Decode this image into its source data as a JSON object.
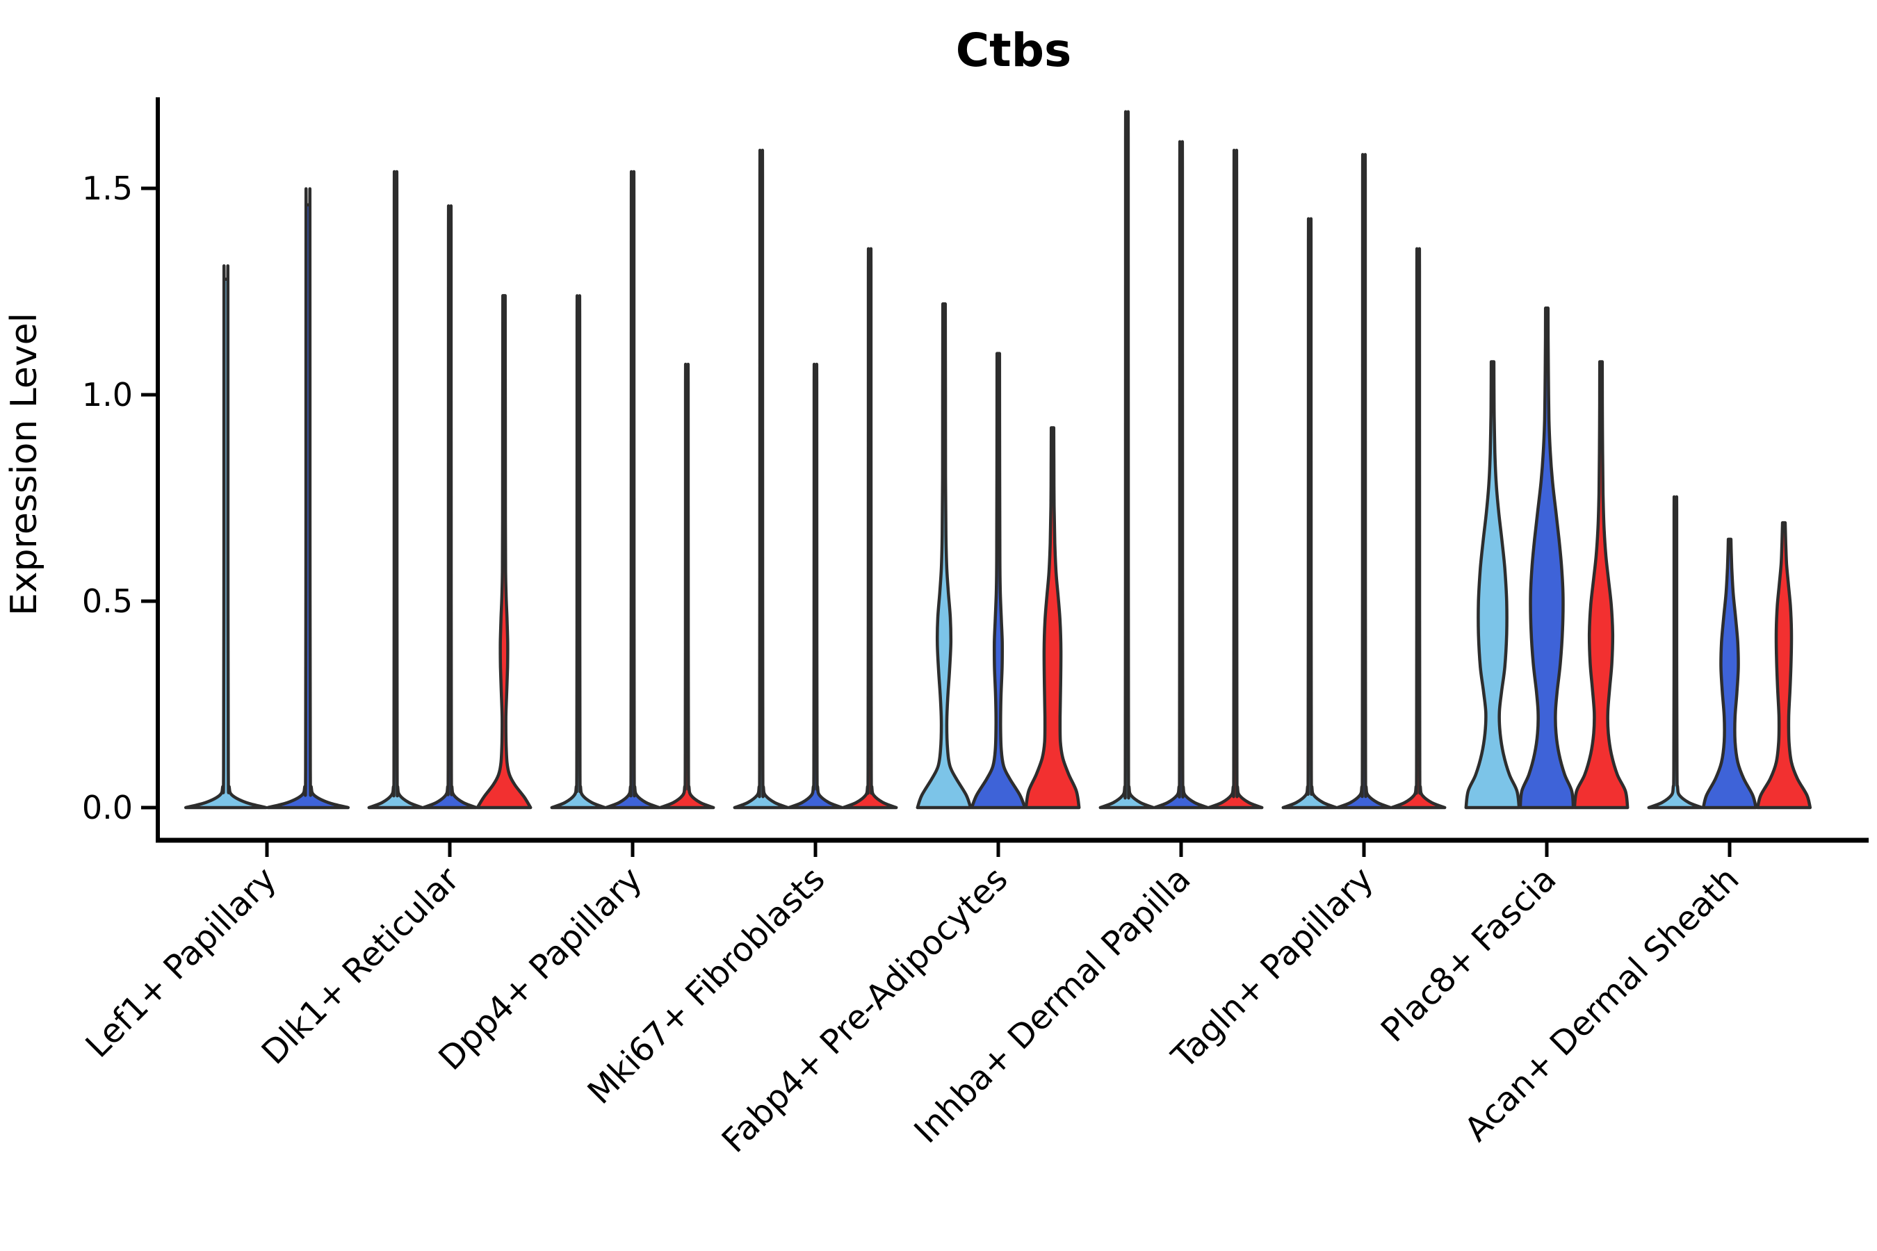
{
  "chart_data": {
    "type": "violin",
    "title": "Ctbs",
    "ylabel": "Expression Level",
    "xlabel": "",
    "ylim": [
      -0.06,
      1.72
    ],
    "grid": false,
    "legend": "none",
    "background_color": "#ffffff",
    "edge_color": "#2d2d2d",
    "axis_color": "#000000",
    "split_colors": [
      "#7CC4E8",
      "#3E63D8",
      "#F23030"
    ],
    "y_ticks": [
      {
        "value": 0.0,
        "label": "0.0"
      },
      {
        "value": 0.5,
        "label": "0.5"
      },
      {
        "value": 1.0,
        "label": "1.0"
      },
      {
        "value": 1.5,
        "label": "1.5"
      }
    ],
    "categories": [
      "Lef1+ Papillary",
      "Dlk1+ Reticular",
      "Dpp4+ Papillary",
      "Mki67+ Fibroblasts",
      "Fabp4+ Pre-Adipocytes",
      "Inhba+ Dermal Papilla",
      "Tagln+ Papillary",
      "Plac8+ Fascia",
      "Acan+ Dermal Sheath"
    ],
    "groups": [
      {
        "category": "Lef1+ Papillary",
        "violins": [
          {
            "split": 0,
            "max": 1.28,
            "shape": "collapsed"
          },
          {
            "split": 1,
            "max": 1.46,
            "shape": "collapsed"
          }
        ]
      },
      {
        "category": "Dlk1+ Reticular",
        "violins": [
          {
            "split": 0,
            "max": 1.5,
            "shape": "collapsed"
          },
          {
            "split": 1,
            "max": 1.42,
            "shape": "collapsed"
          },
          {
            "split": 2,
            "max": 1.24,
            "shape": "profile",
            "profile": [
              [
                0,
                0.98
              ],
              [
                0.025,
                0.75
              ],
              [
                0.055,
                0.4
              ],
              [
                0.08,
                0.2
              ],
              [
                0.11,
                0.11
              ],
              [
                0.16,
                0.075
              ],
              [
                0.22,
                0.07
              ],
              [
                0.28,
                0.1
              ],
              [
                0.34,
                0.13
              ],
              [
                0.4,
                0.135
              ],
              [
                0.46,
                0.11
              ],
              [
                0.51,
                0.08
              ],
              [
                0.57,
                0.06
              ],
              [
                0.7,
                0.052
              ],
              [
                0.95,
                0.048
              ],
              [
                1.24,
                0.044
              ]
            ]
          }
        ]
      },
      {
        "category": "Dpp4+ Papillary",
        "violins": [
          {
            "split": 0,
            "max": 1.21,
            "shape": "collapsed"
          },
          {
            "split": 1,
            "max": 1.5,
            "shape": "collapsed"
          },
          {
            "split": 2,
            "max": 1.05,
            "shape": "collapsed"
          }
        ]
      },
      {
        "category": "Mki67+ Fibroblasts",
        "violins": [
          {
            "split": 0,
            "max": 1.55,
            "shape": "collapsed"
          },
          {
            "split": 1,
            "max": 1.05,
            "shape": "collapsed"
          },
          {
            "split": 2,
            "max": 1.32,
            "shape": "collapsed"
          }
        ]
      },
      {
        "category": "Fabp4+ Pre-Adipocytes",
        "violins": [
          {
            "split": 0,
            "max": 1.22,
            "shape": "profile",
            "profile": [
              [
                0,
                0.98
              ],
              [
                0.03,
                0.82
              ],
              [
                0.07,
                0.45
              ],
              [
                0.1,
                0.22
              ],
              [
                0.14,
                0.13
              ],
              [
                0.2,
                0.1
              ],
              [
                0.26,
                0.13
              ],
              [
                0.33,
                0.2
              ],
              [
                0.4,
                0.25
              ],
              [
                0.46,
                0.23
              ],
              [
                0.52,
                0.16
              ],
              [
                0.58,
                0.1
              ],
              [
                0.66,
                0.07
              ],
              [
                0.8,
                0.055
              ],
              [
                1.0,
                0.05
              ],
              [
                1.22,
                0.046
              ]
            ]
          },
          {
            "split": 1,
            "max": 1.1,
            "shape": "profile",
            "profile": [
              [
                0,
                0.98
              ],
              [
                0.03,
                0.8
              ],
              [
                0.07,
                0.42
              ],
              [
                0.1,
                0.2
              ],
              [
                0.14,
                0.11
              ],
              [
                0.2,
                0.085
              ],
              [
                0.27,
                0.1
              ],
              [
                0.34,
                0.14
              ],
              [
                0.4,
                0.145
              ],
              [
                0.46,
                0.11
              ],
              [
                0.52,
                0.075
              ],
              [
                0.6,
                0.058
              ],
              [
                0.8,
                0.05
              ],
              [
                1.1,
                0.045
              ]
            ]
          },
          {
            "split": 2,
            "max": 0.92,
            "shape": "profile",
            "profile": [
              [
                0,
                0.98
              ],
              [
                0.04,
                0.88
              ],
              [
                0.08,
                0.6
              ],
              [
                0.12,
                0.38
              ],
              [
                0.16,
                0.29
              ],
              [
                0.22,
                0.28
              ],
              [
                0.3,
                0.3
              ],
              [
                0.38,
                0.31
              ],
              [
                0.45,
                0.28
              ],
              [
                0.51,
                0.21
              ],
              [
                0.57,
                0.13
              ],
              [
                0.64,
                0.085
              ],
              [
                0.73,
                0.06
              ],
              [
                0.83,
                0.05
              ],
              [
                0.92,
                0.045
              ]
            ]
          }
        ]
      },
      {
        "category": "Inhba+ Dermal Papilla",
        "violins": [
          {
            "split": 0,
            "max": 1.64,
            "shape": "collapsed"
          },
          {
            "split": 1,
            "max": 1.57,
            "shape": "collapsed"
          },
          {
            "split": 2,
            "max": 1.55,
            "shape": "collapsed"
          }
        ]
      },
      {
        "category": "Tagln+ Papillary",
        "violins": [
          {
            "split": 0,
            "max": 1.39,
            "shape": "collapsed"
          },
          {
            "split": 1,
            "max": 1.54,
            "shape": "collapsed"
          },
          {
            "split": 2,
            "max": 1.32,
            "shape": "collapsed"
          }
        ]
      },
      {
        "category": "Plac8+ Fascia",
        "violins": [
          {
            "split": 0,
            "max": 1.08,
            "shape": "profile",
            "profile": [
              [
                0,
                0.98
              ],
              [
                0.04,
                0.9
              ],
              [
                0.08,
                0.62
              ],
              [
                0.13,
                0.4
              ],
              [
                0.18,
                0.28
              ],
              [
                0.23,
                0.25
              ],
              [
                0.28,
                0.33
              ],
              [
                0.34,
                0.45
              ],
              [
                0.42,
                0.52
              ],
              [
                0.5,
                0.52
              ],
              [
                0.58,
                0.45
              ],
              [
                0.65,
                0.34
              ],
              [
                0.72,
                0.22
              ],
              [
                0.79,
                0.13
              ],
              [
                0.86,
                0.085
              ],
              [
                0.95,
                0.06
              ],
              [
                1.03,
                0.052
              ],
              [
                1.08,
                0.048
              ]
            ]
          },
          {
            "split": 1,
            "max": 1.21,
            "shape": "profile",
            "profile": [
              [
                0,
                0.98
              ],
              [
                0.04,
                0.92
              ],
              [
                0.08,
                0.66
              ],
              [
                0.13,
                0.45
              ],
              [
                0.18,
                0.34
              ],
              [
                0.23,
                0.32
              ],
              [
                0.28,
                0.38
              ],
              [
                0.35,
                0.5
              ],
              [
                0.43,
                0.58
              ],
              [
                0.51,
                0.6
              ],
              [
                0.58,
                0.55
              ],
              [
                0.65,
                0.45
              ],
              [
                0.72,
                0.33
              ],
              [
                0.79,
                0.21
              ],
              [
                0.86,
                0.13
              ],
              [
                0.94,
                0.08
              ],
              [
                1.05,
                0.058
              ],
              [
                1.14,
                0.05
              ],
              [
                1.21,
                0.046
              ]
            ]
          },
          {
            "split": 2,
            "max": 1.08,
            "shape": "profile",
            "profile": [
              [
                0,
                0.98
              ],
              [
                0.04,
                0.9
              ],
              [
                0.08,
                0.6
              ],
              [
                0.13,
                0.38
              ],
              [
                0.18,
                0.27
              ],
              [
                0.23,
                0.25
              ],
              [
                0.29,
                0.32
              ],
              [
                0.35,
                0.4
              ],
              [
                0.42,
                0.43
              ],
              [
                0.49,
                0.38
              ],
              [
                0.55,
                0.28
              ],
              [
                0.61,
                0.18
              ],
              [
                0.68,
                0.11
              ],
              [
                0.76,
                0.075
              ],
              [
                0.86,
                0.058
              ],
              [
                0.98,
                0.05
              ],
              [
                1.08,
                0.046
              ]
            ]
          }
        ]
      },
      {
        "category": "Acan+ Dermal Sheath",
        "violins": [
          {
            "split": 0,
            "max": 0.74,
            "shape": "collapsed"
          },
          {
            "split": 1,
            "max": 0.65,
            "shape": "profile",
            "profile": [
              [
                0,
                0.97
              ],
              [
                0.03,
                0.85
              ],
              [
                0.07,
                0.52
              ],
              [
                0.11,
                0.3
              ],
              [
                0.16,
                0.2
              ],
              [
                0.22,
                0.2
              ],
              [
                0.28,
                0.27
              ],
              [
                0.34,
                0.32
              ],
              [
                0.4,
                0.3
              ],
              [
                0.46,
                0.22
              ],
              [
                0.52,
                0.13
              ],
              [
                0.58,
                0.08
              ],
              [
                0.62,
                0.06
              ],
              [
                0.65,
                0.05
              ]
            ]
          },
          {
            "split": 2,
            "max": 0.69,
            "shape": "profile",
            "profile": [
              [
                0,
                0.97
              ],
              [
                0.03,
                0.85
              ],
              [
                0.07,
                0.5
              ],
              [
                0.11,
                0.28
              ],
              [
                0.16,
                0.19
              ],
              [
                0.22,
                0.18
              ],
              [
                0.29,
                0.23
              ],
              [
                0.36,
                0.27
              ],
              [
                0.43,
                0.28
              ],
              [
                0.49,
                0.24
              ],
              [
                0.54,
                0.17
              ],
              [
                0.59,
                0.1
              ],
              [
                0.64,
                0.07
              ],
              [
                0.69,
                0.05
              ]
            ]
          }
        ]
      }
    ]
  }
}
